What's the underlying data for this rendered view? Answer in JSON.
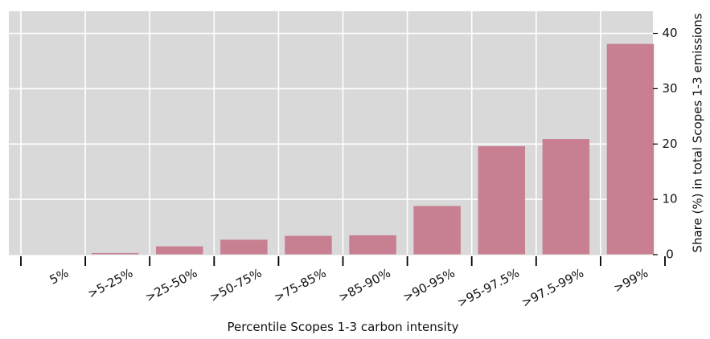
{
  "chart_data": {
    "type": "bar",
    "categories": [
      "5%",
      ">5-25%",
      ">25-50%",
      ">50-75%",
      ">75-85%",
      ">85-90%",
      ">90-95%",
      ">95-97.5%",
      ">97.5-99%",
      ">99%"
    ],
    "values": [
      0,
      0.3,
      1.5,
      2.7,
      3.4,
      3.5,
      8.8,
      19.6,
      20.9,
      38.1
    ],
    "xlabel": "Percentile Scopes 1-3 carbon intensity",
    "ylabel": "Share (%) in total Scopes 1-3 emissions",
    "ylim": [
      0,
      44
    ],
    "yticks": [
      0,
      10,
      20,
      30,
      40
    ],
    "y_axis_side": "right",
    "grid": true,
    "colors": {
      "bar": "#c87f91",
      "panel": "#d9d9d9",
      "grid": "#ffffff"
    }
  }
}
